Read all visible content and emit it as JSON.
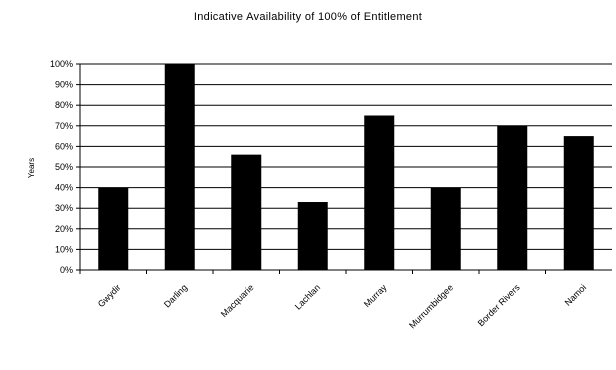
{
  "chart_data": {
    "type": "bar",
    "title": "Indicative Availability of 100% of Entitlement",
    "ylabel": "Years",
    "xlabel": "",
    "categories": [
      "Gwydir",
      "Darling",
      "Macquarie",
      "Lachlan",
      "Murray",
      "Murrumbidgee",
      "Border Rivers",
      "Namoi"
    ],
    "values": [
      40,
      100,
      56,
      33,
      75,
      40,
      70,
      65
    ],
    "ylim": [
      0,
      100
    ],
    "yticks": [
      "0%",
      "10%",
      "20%",
      "30%",
      "40%",
      "50%",
      "60%",
      "70%",
      "80%",
      "90%",
      "100%"
    ],
    "grid": true,
    "bar_color": "#000000"
  }
}
